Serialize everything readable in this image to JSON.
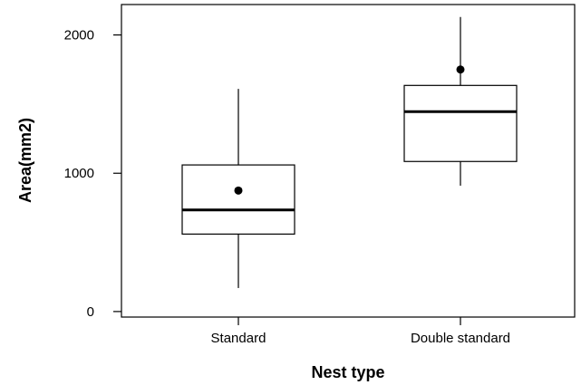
{
  "chart_data": {
    "type": "box",
    "xlabel": "Nest type",
    "ylabel": "Area(mm2)",
    "ylim": [
      -40,
      2220
    ],
    "yticks": [
      0,
      1000,
      2000
    ],
    "grid": false,
    "categories": [
      "Standard",
      "Double standard"
    ],
    "boxes": [
      {
        "category": "Standard",
        "whisker_low": 170,
        "q1": 560,
        "median": 735,
        "q3": 1060,
        "whisker_high": 1610,
        "mean": 875
      },
      {
        "category": "Double standard",
        "whisker_low": 910,
        "q1": 1085,
        "median": 1445,
        "q3": 1635,
        "whisker_high": 2130,
        "mean": 1750
      }
    ]
  }
}
